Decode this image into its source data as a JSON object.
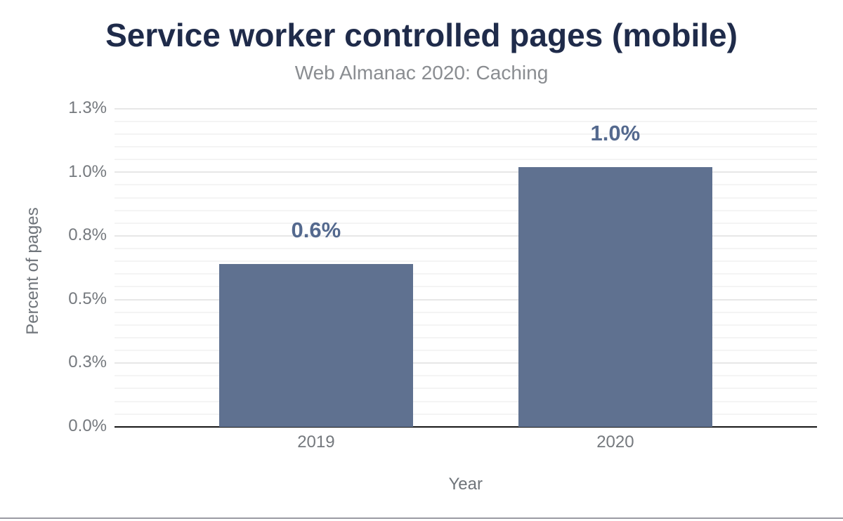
{
  "figure": {
    "title": "Service worker controlled pages (mobile)",
    "subtitle": "Web Almanac 2020: Caching"
  },
  "chart_data": {
    "type": "bar",
    "title": "Service worker controlled pages (mobile)",
    "subtitle": "Web Almanac 2020: Caching",
    "categories": [
      "2019",
      "2020"
    ],
    "values": [
      0.64,
      1.02
    ],
    "bar_labels": [
      "0.6%",
      "1.0%"
    ],
    "xlabel": "Year",
    "ylabel": "Percent of pages",
    "ylim": [
      0,
      1.25
    ],
    "ytick_values": [
      0,
      0.25,
      0.5,
      0.75,
      1.0,
      1.25
    ],
    "ytick_labels": [
      "0.0%",
      "0.3%",
      "0.5%",
      "0.8%",
      "1.0%",
      "1.3%"
    ],
    "minor_grid_step": 0.05,
    "grid": "on",
    "legend": "none",
    "colors": {
      "bar": "#5f7190",
      "annotation": "#54698e",
      "title": "#1f2b4a",
      "subtitle": "#8a8d91",
      "tick_label": "#75797e",
      "axis_title": "#6f747a",
      "major_gridline": "#e7e7e7",
      "minor_gridline": "#f4f4f4",
      "axis_line": "#161616",
      "bottom_rule": "#9b9ba3"
    }
  }
}
